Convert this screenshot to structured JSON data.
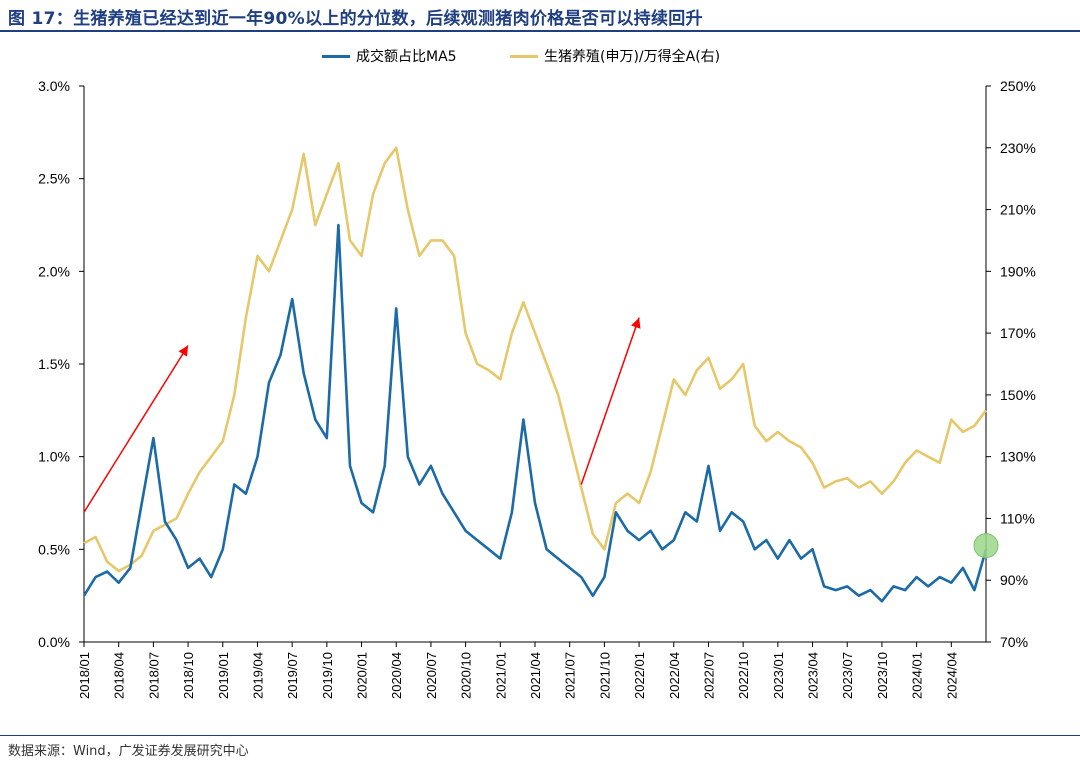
{
  "header": {
    "title": "图 17：生猪养殖已经达到近一年90%以上的分位数，后续观测猪肉价格是否可以持续回升"
  },
  "footer": {
    "source": "数据来源：Wind，广发证券发展研究中心"
  },
  "colors": {
    "title": "#1f3f82",
    "series_left": "#1c6aa6",
    "series_right": "#e6c86a",
    "arrow": "#ff0000",
    "marker": "#9bd68a"
  },
  "chart_data": {
    "type": "line",
    "title": "",
    "legend_position": "top-center",
    "grid": false,
    "x_ticks": [
      "2018/01",
      "2018/04",
      "2018/07",
      "2018/10",
      "2019/01",
      "2019/04",
      "2019/07",
      "2019/10",
      "2020/01",
      "2020/04",
      "2020/07",
      "2020/10",
      "2021/01",
      "2021/04",
      "2021/07",
      "2021/10",
      "2022/01",
      "2022/04",
      "2022/07",
      "2022/10",
      "2023/01",
      "2023/04",
      "2023/07",
      "2023/10",
      "2024/01",
      "2024/04"
    ],
    "y_left": {
      "min": 0.0,
      "max": 3.0,
      "ticks": [
        "0.0%",
        "0.5%",
        "1.0%",
        "1.5%",
        "2.0%",
        "2.5%",
        "3.0%"
      ]
    },
    "y_right": {
      "min": 70,
      "max": 250,
      "ticks": [
        "70%",
        "90%",
        "110%",
        "130%",
        "150%",
        "170%",
        "190%",
        "210%",
        "230%",
        "250%"
      ]
    },
    "series": [
      {
        "name": "成交额占比MA5",
        "axis": "left",
        "unit": "%",
        "points": [
          [
            "2018/01",
            0.25
          ],
          [
            "2018/02",
            0.35
          ],
          [
            "2018/03",
            0.38
          ],
          [
            "2018/04",
            0.32
          ],
          [
            "2018/05",
            0.4
          ],
          [
            "2018/06",
            0.75
          ],
          [
            "2018/07",
            1.1
          ],
          [
            "2018/08",
            0.65
          ],
          [
            "2018/09",
            0.55
          ],
          [
            "2018/10",
            0.4
          ],
          [
            "2018/11",
            0.45
          ],
          [
            "2018/12",
            0.35
          ],
          [
            "2019/01",
            0.5
          ],
          [
            "2019/02",
            0.85
          ],
          [
            "2019/03",
            0.8
          ],
          [
            "2019/04",
            1.0
          ],
          [
            "2019/05",
            1.4
          ],
          [
            "2019/06",
            1.55
          ],
          [
            "2019/07",
            1.85
          ],
          [
            "2019/08",
            1.45
          ],
          [
            "2019/09",
            1.2
          ],
          [
            "2019/10",
            1.1
          ],
          [
            "2019/11",
            2.25
          ],
          [
            "2019/12",
            0.95
          ],
          [
            "2020/01",
            0.75
          ],
          [
            "2020/02",
            0.7
          ],
          [
            "2020/03",
            0.95
          ],
          [
            "2020/04",
            1.8
          ],
          [
            "2020/05",
            1.0
          ],
          [
            "2020/06",
            0.85
          ],
          [
            "2020/07",
            0.95
          ],
          [
            "2020/08",
            0.8
          ],
          [
            "2020/09",
            0.7
          ],
          [
            "2020/10",
            0.6
          ],
          [
            "2020/11",
            0.55
          ],
          [
            "2020/12",
            0.5
          ],
          [
            "2021/01",
            0.45
          ],
          [
            "2021/02",
            0.7
          ],
          [
            "2021/03",
            1.2
          ],
          [
            "2021/04",
            0.75
          ],
          [
            "2021/05",
            0.5
          ],
          [
            "2021/06",
            0.45
          ],
          [
            "2021/07",
            0.4
          ],
          [
            "2021/08",
            0.35
          ],
          [
            "2021/09",
            0.25
          ],
          [
            "2021/10",
            0.35
          ],
          [
            "2021/11",
            0.7
          ],
          [
            "2021/12",
            0.6
          ],
          [
            "2022/01",
            0.55
          ],
          [
            "2022/02",
            0.6
          ],
          [
            "2022/03",
            0.5
          ],
          [
            "2022/04",
            0.55
          ],
          [
            "2022/05",
            0.7
          ],
          [
            "2022/06",
            0.65
          ],
          [
            "2022/07",
            0.95
          ],
          [
            "2022/08",
            0.6
          ],
          [
            "2022/09",
            0.7
          ],
          [
            "2022/10",
            0.65
          ],
          [
            "2022/11",
            0.5
          ],
          [
            "2022/12",
            0.55
          ],
          [
            "2023/01",
            0.45
          ],
          [
            "2023/02",
            0.55
          ],
          [
            "2023/03",
            0.45
          ],
          [
            "2023/04",
            0.5
          ],
          [
            "2023/05",
            0.3
          ],
          [
            "2023/06",
            0.28
          ],
          [
            "2023/07",
            0.3
          ],
          [
            "2023/08",
            0.25
          ],
          [
            "2023/09",
            0.28
          ],
          [
            "2023/10",
            0.22
          ],
          [
            "2023/11",
            0.3
          ],
          [
            "2023/12",
            0.28
          ],
          [
            "2024/01",
            0.35
          ],
          [
            "2024/02",
            0.3
          ],
          [
            "2024/03",
            0.35
          ],
          [
            "2024/04",
            0.32
          ],
          [
            "2024/05",
            0.4
          ],
          [
            "2024/06",
            0.28
          ],
          [
            "2024/07",
            0.5
          ]
        ]
      },
      {
        "name": "生猪养殖(申万)/万得全A(右)",
        "axis": "right",
        "unit": "%",
        "points": [
          [
            "2018/01",
            102
          ],
          [
            "2018/02",
            104
          ],
          [
            "2018/03",
            96
          ],
          [
            "2018/04",
            93
          ],
          [
            "2018/05",
            95
          ],
          [
            "2018/06",
            98
          ],
          [
            "2018/07",
            106
          ],
          [
            "2018/08",
            108
          ],
          [
            "2018/09",
            110
          ],
          [
            "2018/10",
            118
          ],
          [
            "2018/11",
            125
          ],
          [
            "2018/12",
            130
          ],
          [
            "2019/01",
            135
          ],
          [
            "2019/02",
            150
          ],
          [
            "2019/03",
            175
          ],
          [
            "2019/04",
            195
          ],
          [
            "2019/05",
            190
          ],
          [
            "2019/06",
            200
          ],
          [
            "2019/07",
            210
          ],
          [
            "2019/08",
            228
          ],
          [
            "2019/09",
            205
          ],
          [
            "2019/10",
            215
          ],
          [
            "2019/11",
            225
          ],
          [
            "2019/12",
            200
          ],
          [
            "2020/01",
            195
          ],
          [
            "2020/02",
            215
          ],
          [
            "2020/03",
            225
          ],
          [
            "2020/04",
            230
          ],
          [
            "2020/05",
            210
          ],
          [
            "2020/06",
            195
          ],
          [
            "2020/07",
            200
          ],
          [
            "2020/08",
            200
          ],
          [
            "2020/09",
            195
          ],
          [
            "2020/10",
            170
          ],
          [
            "2020/11",
            160
          ],
          [
            "2020/12",
            158
          ],
          [
            "2021/01",
            155
          ],
          [
            "2021/02",
            170
          ],
          [
            "2021/03",
            180
          ],
          [
            "2021/04",
            170
          ],
          [
            "2021/05",
            160
          ],
          [
            "2021/06",
            150
          ],
          [
            "2021/07",
            135
          ],
          [
            "2021/08",
            120
          ],
          [
            "2021/09",
            105
          ],
          [
            "2021/10",
            100
          ],
          [
            "2021/11",
            115
          ],
          [
            "2021/12",
            118
          ],
          [
            "2022/01",
            115
          ],
          [
            "2022/02",
            125
          ],
          [
            "2022/03",
            140
          ],
          [
            "2022/04",
            155
          ],
          [
            "2022/05",
            150
          ],
          [
            "2022/06",
            158
          ],
          [
            "2022/07",
            162
          ],
          [
            "2022/08",
            152
          ],
          [
            "2022/09",
            155
          ],
          [
            "2022/10",
            160
          ],
          [
            "2022/11",
            140
          ],
          [
            "2022/12",
            135
          ],
          [
            "2023/01",
            138
          ],
          [
            "2023/02",
            135
          ],
          [
            "2023/03",
            133
          ],
          [
            "2023/04",
            128
          ],
          [
            "2023/05",
            120
          ],
          [
            "2023/06",
            122
          ],
          [
            "2023/07",
            123
          ],
          [
            "2023/08",
            120
          ],
          [
            "2023/09",
            122
          ],
          [
            "2023/10",
            118
          ],
          [
            "2023/11",
            122
          ],
          [
            "2023/12",
            128
          ],
          [
            "2024/01",
            132
          ],
          [
            "2024/02",
            130
          ],
          [
            "2024/03",
            128
          ],
          [
            "2024/04",
            142
          ],
          [
            "2024/05",
            138
          ],
          [
            "2024/06",
            140
          ],
          [
            "2024/07",
            145
          ]
        ]
      }
    ],
    "annotations": [
      {
        "type": "arrow",
        "from": [
          "2018/01",
          0.7
        ],
        "to": [
          "2018/10",
          1.6
        ],
        "axis": "left"
      },
      {
        "type": "arrow",
        "from": [
          "2021/08",
          0.85
        ],
        "to": [
          "2022/01",
          1.75
        ],
        "axis": "left"
      },
      {
        "type": "circle",
        "at": [
          "2024/07",
          0.52
        ],
        "axis": "left"
      }
    ]
  }
}
